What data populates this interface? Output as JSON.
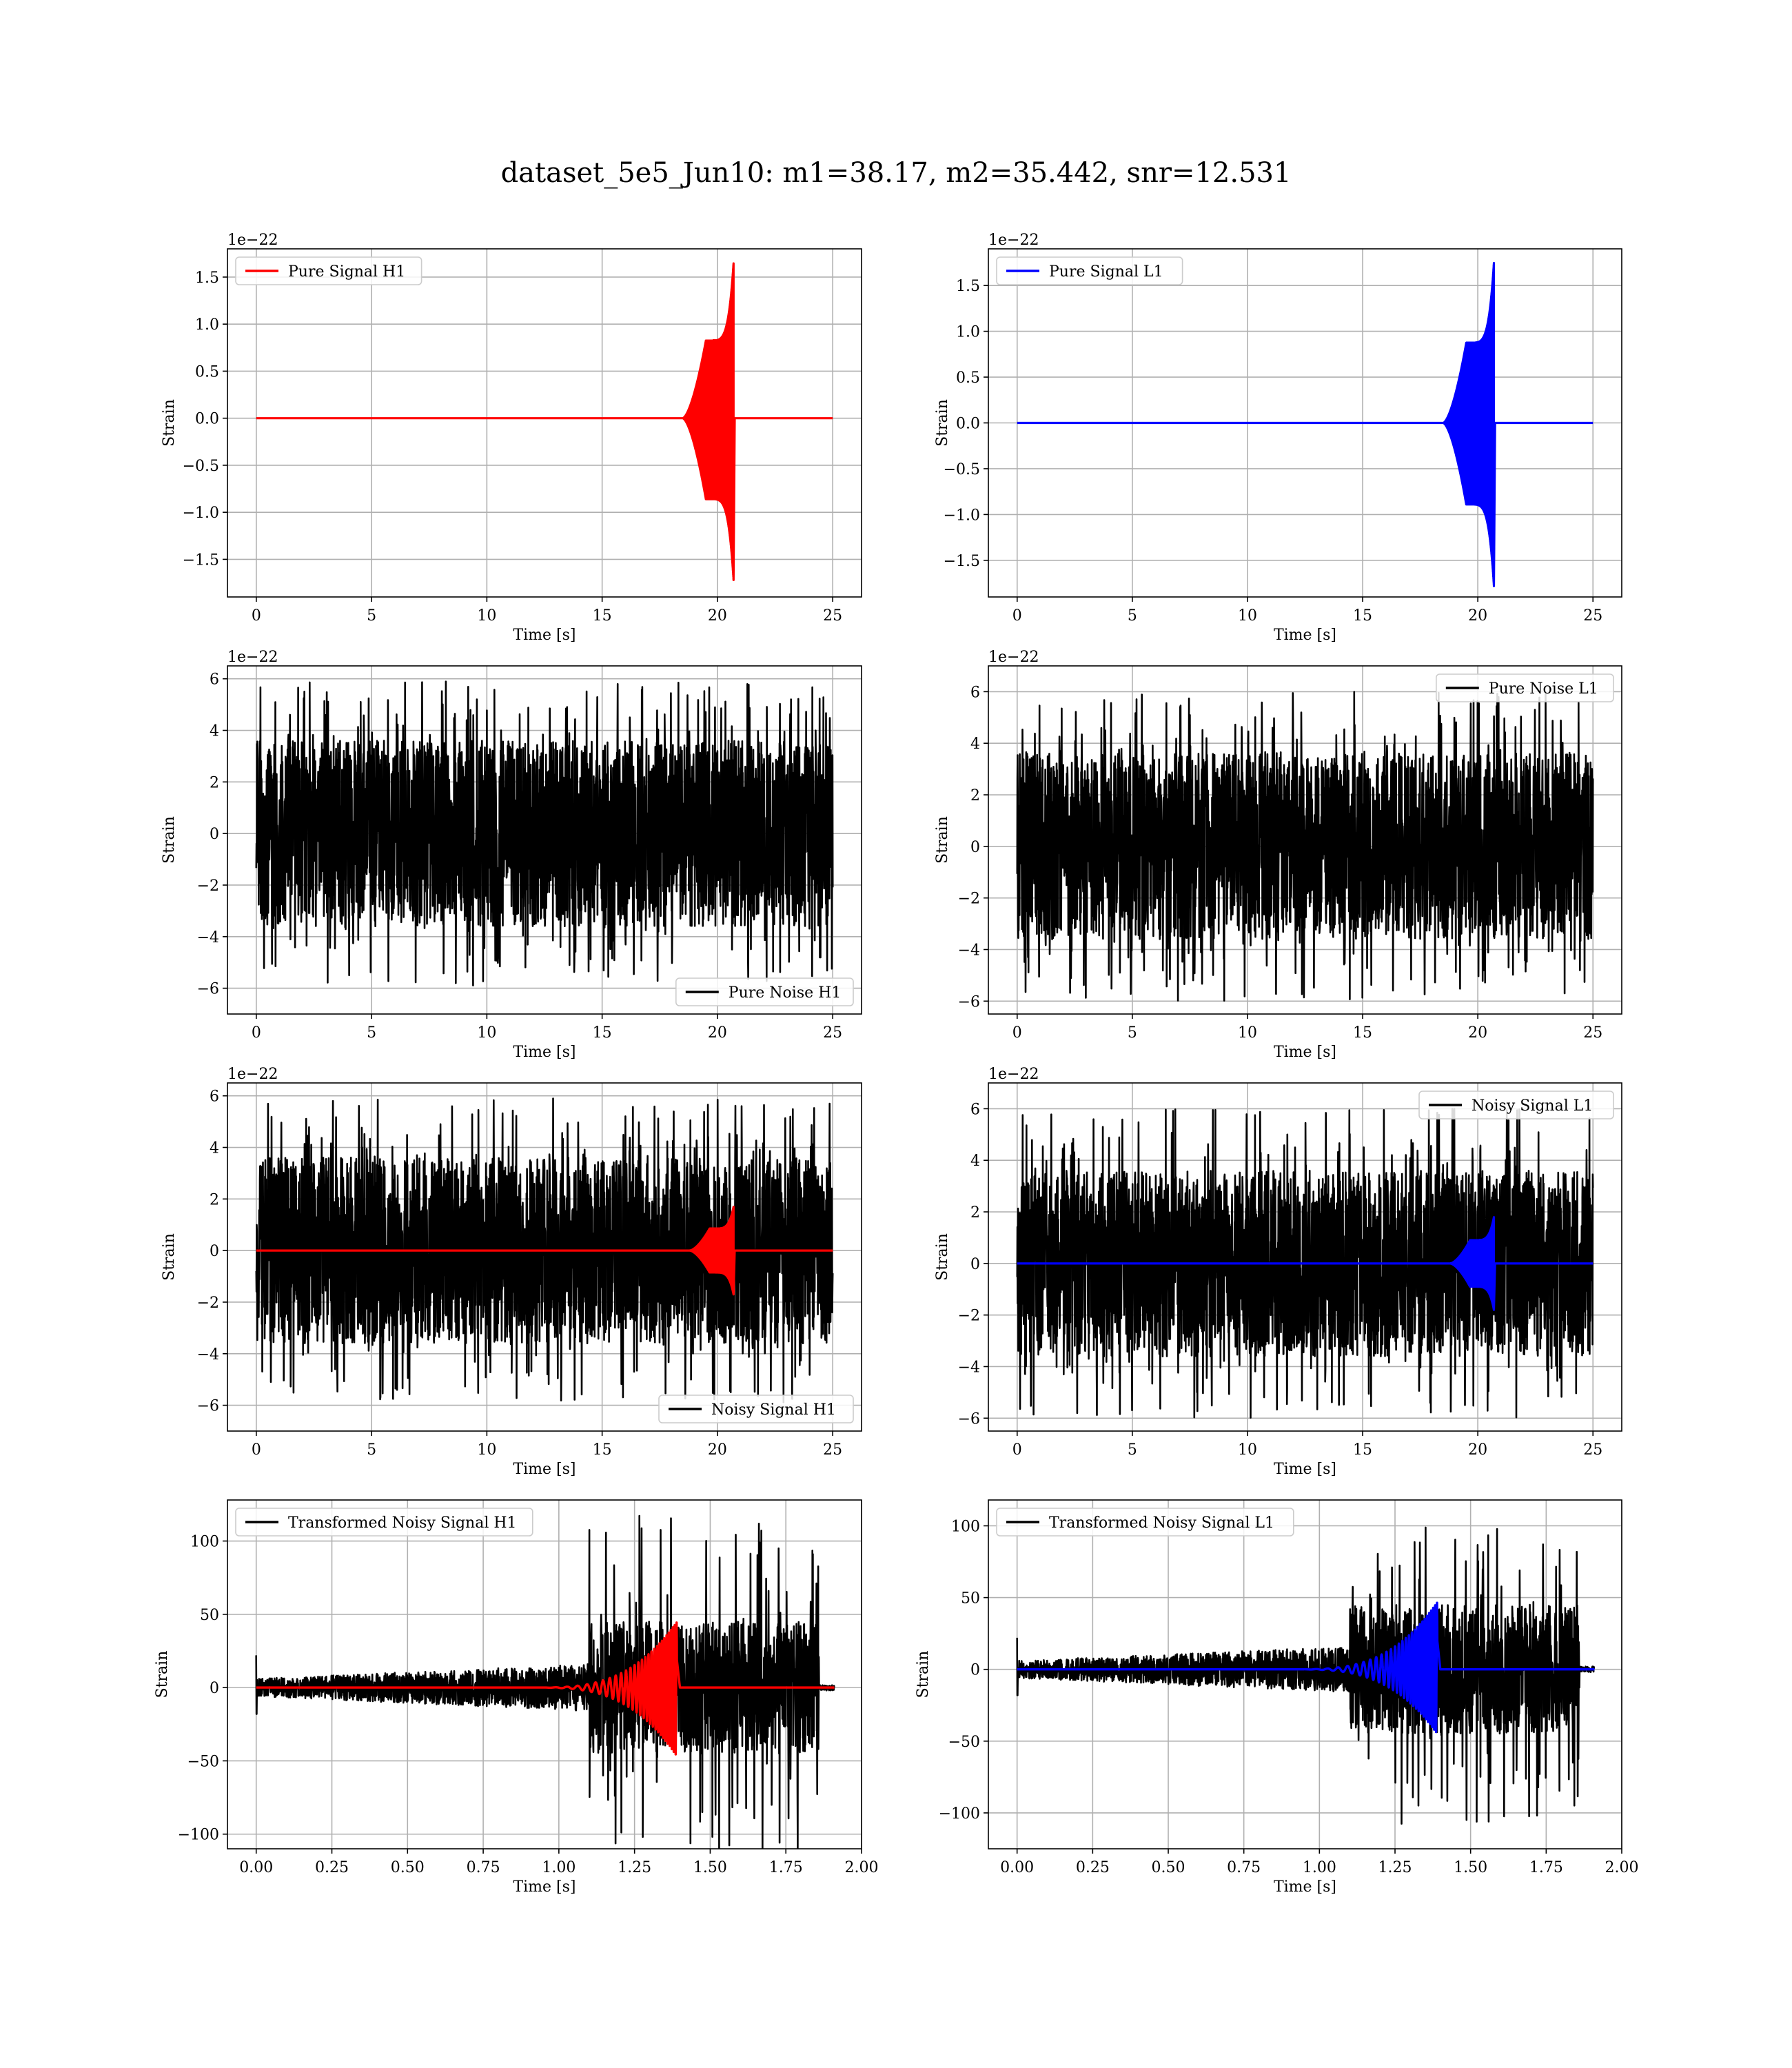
{
  "figure": {
    "title": "dataset_5e5_Jun10: m1=38.17, m2=35.442, snr=12.531"
  },
  "colors": {
    "h1_signal": "#ff0000",
    "l1_signal": "#0000ff",
    "noise": "#000000",
    "grid": "#b0b0b0"
  },
  "chart_data": [
    {
      "id": "pure-signal-h1",
      "type": "line",
      "grid": true,
      "xlabel": "Time [s]",
      "ylabel": "Strain",
      "offset_text": "1e−22",
      "xlim": [
        -1.25,
        26.25
      ],
      "ylim": [
        -1.9,
        1.8
      ],
      "xticks": [
        0,
        5,
        10,
        15,
        20,
        25
      ],
      "xtick_labels": [
        "0",
        "5",
        "10",
        "15",
        "20",
        "25"
      ],
      "yticks": [
        1.5,
        1.0,
        0.5,
        0.0,
        -0.5,
        -1.0,
        -1.5
      ],
      "ytick_labels": [
        "1.5",
        "1.0",
        "0.5",
        "0.0",
        "−0.5",
        "−1.0",
        "−1.5"
      ],
      "legend": {
        "entries": [
          "Pure Signal H1"
        ],
        "placement": "upper left"
      },
      "series": [
        {
          "name": "Pure Signal H1",
          "color": "#ff0000",
          "kind": "chirp",
          "x_start": 0,
          "x_end": 25,
          "t_rise": 18.5,
          "t_merger": 20.7,
          "peak_pos": 1.65,
          "peak_neg": -1.72,
          "early_amp": 0.5
        }
      ]
    },
    {
      "id": "pure-signal-l1",
      "type": "line",
      "grid": true,
      "xlabel": "Time [s]",
      "ylabel": "Strain",
      "offset_text": "1e−22",
      "xlim": [
        -1.25,
        26.25
      ],
      "ylim": [
        -1.9,
        1.9
      ],
      "xticks": [
        0,
        5,
        10,
        15,
        20,
        25
      ],
      "xtick_labels": [
        "0",
        "5",
        "10",
        "15",
        "20",
        "25"
      ],
      "yticks": [
        1.5,
        1.0,
        0.5,
        0.0,
        -0.5,
        -1.0,
        -1.5
      ],
      "ytick_labels": [
        "1.5",
        "1.0",
        "0.5",
        "0.0",
        "−0.5",
        "−1.0",
        "−1.5"
      ],
      "legend": {
        "entries": [
          "Pure Signal L1"
        ],
        "placement": "upper left"
      },
      "series": [
        {
          "name": "Pure Signal L1",
          "color": "#0000ff",
          "kind": "chirp",
          "x_start": 0,
          "x_end": 25,
          "t_rise": 18.5,
          "t_merger": 20.7,
          "peak_pos": 1.75,
          "peak_neg": -1.78,
          "early_amp": 0.5
        }
      ]
    },
    {
      "id": "pure-noise-h1",
      "type": "line",
      "grid": true,
      "xlabel": "Time [s]",
      "ylabel": "Strain",
      "offset_text": "1e−22",
      "xlim": [
        -1.25,
        26.25
      ],
      "ylim": [
        -7,
        6.5
      ],
      "xticks": [
        0,
        5,
        10,
        15,
        20,
        25
      ],
      "xtick_labels": [
        "0",
        "5",
        "10",
        "15",
        "20",
        "25"
      ],
      "yticks": [
        6,
        4,
        2,
        0,
        -2,
        -4,
        -6
      ],
      "ytick_labels": [
        "6",
        "4",
        "2",
        "0",
        "−2",
        "−4",
        "−6"
      ],
      "legend": {
        "entries": [
          "Pure Noise H1"
        ],
        "placement": "lower right"
      },
      "series": [
        {
          "name": "Pure Noise H1",
          "color": "#000000",
          "kind": "noise",
          "x_start": 0,
          "x_end": 25,
          "band": 3.6,
          "spike": 5.9
        }
      ]
    },
    {
      "id": "pure-noise-l1",
      "type": "line",
      "grid": true,
      "xlabel": "Time [s]",
      "ylabel": "Strain",
      "offset_text": "1e−22",
      "xlim": [
        -1.25,
        26.25
      ],
      "ylim": [
        -6.5,
        7
      ],
      "xticks": [
        0,
        5,
        10,
        15,
        20,
        25
      ],
      "xtick_labels": [
        "0",
        "5",
        "10",
        "15",
        "20",
        "25"
      ],
      "yticks": [
        6,
        4,
        2,
        0,
        -2,
        -4,
        -6
      ],
      "ytick_labels": [
        "6",
        "4",
        "2",
        "0",
        "−2",
        "−4",
        "−6"
      ],
      "legend": {
        "entries": [
          "Pure Noise L1"
        ],
        "placement": "upper right"
      },
      "series": [
        {
          "name": "Pure Noise L1",
          "color": "#000000",
          "kind": "noise",
          "x_start": 0,
          "x_end": 25,
          "band": 3.6,
          "spike": 6.0
        }
      ]
    },
    {
      "id": "noisy-signal-h1",
      "type": "line",
      "grid": true,
      "xlabel": "Time [s]",
      "ylabel": "Strain",
      "offset_text": "1e−22",
      "xlim": [
        -1.25,
        26.25
      ],
      "ylim": [
        -7,
        6.5
      ],
      "xticks": [
        0,
        5,
        10,
        15,
        20,
        25
      ],
      "xtick_labels": [
        "0",
        "5",
        "10",
        "15",
        "20",
        "25"
      ],
      "yticks": [
        6,
        4,
        2,
        0,
        -2,
        -4,
        -6
      ],
      "ytick_labels": [
        "6",
        "4",
        "2",
        "0",
        "−2",
        "−4",
        "−6"
      ],
      "legend": {
        "entries": [
          "Noisy Signal H1"
        ],
        "placement": "lower right"
      },
      "series": [
        {
          "name": "Noisy Signal H1",
          "color": "#000000",
          "kind": "noise",
          "x_start": 0,
          "x_end": 25,
          "band": 3.6,
          "spike": 5.9
        },
        {
          "color": "#ff0000",
          "kind": "chirp",
          "x_start": 0,
          "x_end": 25,
          "t_rise": 18.8,
          "t_merger": 20.7,
          "peak_pos": 1.7,
          "peak_neg": -1.7,
          "early_amp": 0.5
        }
      ]
    },
    {
      "id": "noisy-signal-l1",
      "type": "line",
      "grid": true,
      "xlabel": "Time [s]",
      "ylabel": "Strain",
      "offset_text": "1e−22",
      "xlim": [
        -1.25,
        26.25
      ],
      "ylim": [
        -6.5,
        7
      ],
      "xticks": [
        0,
        5,
        10,
        15,
        20,
        25
      ],
      "xtick_labels": [
        "0",
        "5",
        "10",
        "15",
        "20",
        "25"
      ],
      "yticks": [
        6,
        4,
        2,
        0,
        -2,
        -4,
        -6
      ],
      "ytick_labels": [
        "6",
        "4",
        "2",
        "0",
        "−2",
        "−4",
        "−6"
      ],
      "legend": {
        "entries": [
          "Noisy Signal L1"
        ],
        "placement": "upper right"
      },
      "series": [
        {
          "name": "Noisy Signal L1",
          "color": "#000000",
          "kind": "noise",
          "x_start": 0,
          "x_end": 25,
          "band": 3.6,
          "spike": 6.0
        },
        {
          "color": "#0000ff",
          "kind": "chirp",
          "x_start": 0,
          "x_end": 25,
          "t_rise": 18.8,
          "t_merger": 20.7,
          "peak_pos": 1.8,
          "peak_neg": -1.8,
          "early_amp": 0.5
        }
      ]
    },
    {
      "id": "transformed-noisy-signal-h1",
      "type": "line",
      "grid": true,
      "xlabel": "Time [s]",
      "ylabel": "Strain",
      "offset_text": "",
      "xlim": [
        -0.095,
        2.0
      ],
      "ylim": [
        -110,
        128
      ],
      "xticks": [
        0,
        0.25,
        0.5,
        0.75,
        1.0,
        1.25,
        1.5,
        1.75,
        2.0
      ],
      "xtick_labels": [
        "0.00",
        "0.25",
        "0.50",
        "0.75",
        "1.00",
        "1.25",
        "1.50",
        "1.75",
        "2.00"
      ],
      "yticks": [
        100,
        50,
        0,
        -50,
        -100
      ],
      "ytick_labels": [
        "100",
        "50",
        "0",
        "−50",
        "−100"
      ],
      "legend": {
        "entries": [
          "Transformed Noisy Signal H1"
        ],
        "placement": "upper left"
      },
      "series": [
        {
          "name": "Transformed Noisy Signal H1",
          "color": "#000000",
          "kind": "whitened_noise",
          "x_start": 0,
          "x_end": 1.91,
          "early_band": 6,
          "late_band": 45,
          "t_jump": 1.1,
          "spike": 118
        },
        {
          "color": "#ff0000",
          "kind": "oscillating_chirp",
          "x_start": 0,
          "x_end": 1.91,
          "t_merger": 1.39,
          "peak_pos": 45,
          "peak_neg": -47
        }
      ]
    },
    {
      "id": "transformed-noisy-signal-l1",
      "type": "line",
      "grid": true,
      "xlabel": "Time [s]",
      "ylabel": "Strain",
      "offset_text": "",
      "xlim": [
        -0.095,
        2.0
      ],
      "ylim": [
        -125,
        118
      ],
      "xticks": [
        0,
        0.25,
        0.5,
        0.75,
        1.0,
        1.25,
        1.5,
        1.75,
        2.0
      ],
      "xtick_labels": [
        "0.00",
        "0.25",
        "0.50",
        "0.75",
        "1.00",
        "1.25",
        "1.50",
        "1.75",
        "2.00"
      ],
      "yticks": [
        100,
        50,
        0,
        -50,
        -100
      ],
      "ytick_labels": [
        "100",
        "50",
        "0",
        "−50",
        "−100"
      ],
      "legend": {
        "entries": [
          "Transformed Noisy Signal L1"
        ],
        "placement": "upper left"
      },
      "series": [
        {
          "name": "Transformed Noisy Signal L1",
          "color": "#000000",
          "kind": "whitened_noise",
          "x_start": 0,
          "x_end": 1.91,
          "early_band": 6,
          "late_band": 45,
          "t_jump": 1.1,
          "spike": 110
        },
        {
          "color": "#0000ff",
          "kind": "oscillating_chirp",
          "x_start": 0,
          "x_end": 1.91,
          "t_merger": 1.39,
          "peak_pos": 47,
          "peak_neg": -45
        }
      ]
    }
  ]
}
